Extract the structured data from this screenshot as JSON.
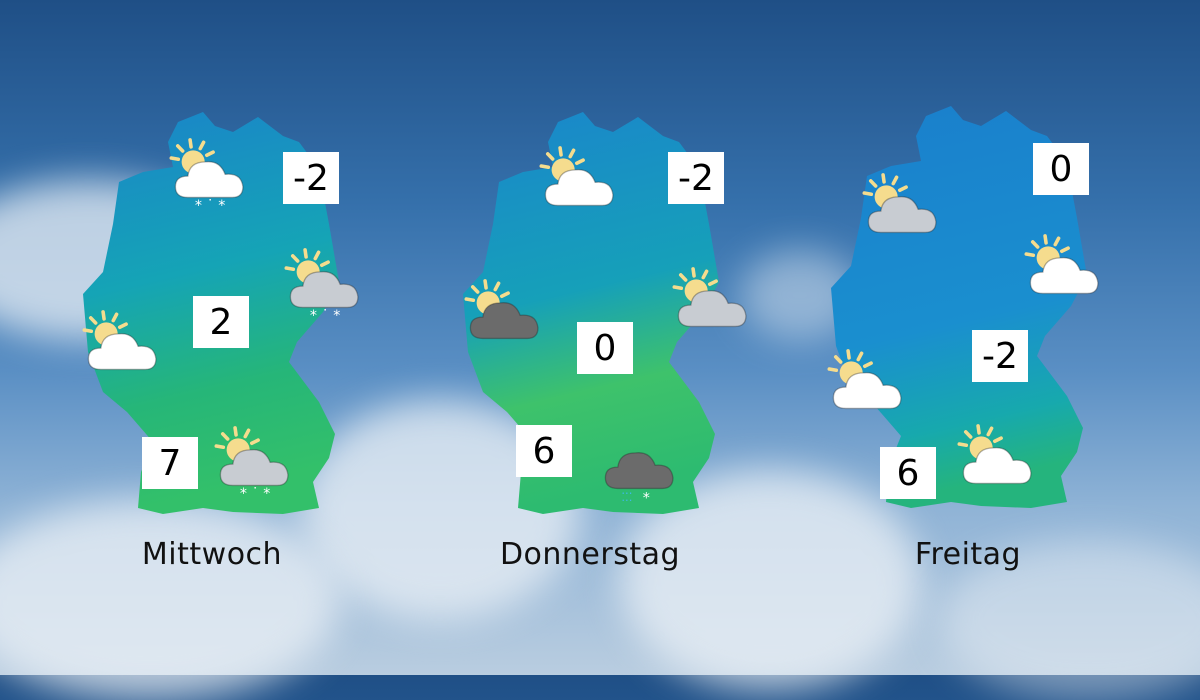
{
  "colors": {
    "sea_top": "#1f4f86",
    "map_blue": "#1d8fd0",
    "map_teal": "#17aab0",
    "map_green": "#2fbf6a",
    "map_yellowgreen": "#8ccf62",
    "box": "#ffffff",
    "sun": "#f5dc8e"
  },
  "days": [
    {
      "label": "Mittwoch",
      "temps": [
        "-2",
        "2",
        "7"
      ],
      "icons": [
        "sun-cloud-snow-icon",
        "sun-grey-cloud-snow-icon",
        "sun-cloud-icon",
        "sun-grey-cloud-snow-icon"
      ]
    },
    {
      "label": "Donnerstag",
      "temps": [
        "-2",
        "0",
        "6"
      ],
      "icons": [
        "sun-cloud-icon",
        "sun-dark-cloud-icon",
        "sun-grey-cloud-icon",
        "dark-cloud-sleet-icon"
      ]
    },
    {
      "label": "Freitag",
      "temps": [
        "0",
        "-2",
        "6"
      ],
      "icons": [
        "sun-grey-cloud-icon",
        "sun-cloud-icon",
        "sun-cloud-icon",
        "sun-cloud-icon"
      ]
    }
  ]
}
